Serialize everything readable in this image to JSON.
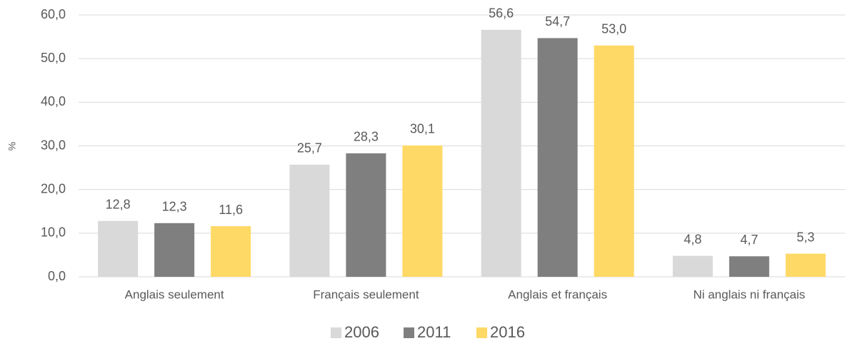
{
  "chart_data": {
    "type": "bar",
    "y_label": "%",
    "categories": [
      "Anglais seulement",
      "Français seulement",
      "Anglais et français",
      "Ni anglais ni français"
    ],
    "series": [
      {
        "name": "2006",
        "color": "#d9d9d9",
        "values": [
          12.8,
          25.7,
          56.6,
          4.8
        ],
        "value_labels": [
          "12,8",
          "25,7",
          "56,6",
          "4,8"
        ]
      },
      {
        "name": "2011",
        "color": "#7f7f7f",
        "values": [
          12.3,
          28.3,
          54.7,
          4.7
        ],
        "value_labels": [
          "12,3",
          "28,3",
          "54,7",
          "4,7"
        ]
      },
      {
        "name": "2016",
        "color": "#ffd966",
        "values": [
          11.6,
          30.1,
          53.0,
          5.3
        ],
        "value_labels": [
          "11,6",
          "30,1",
          "53,0",
          "5,3"
        ]
      }
    ],
    "ylim": [
      0,
      60
    ],
    "yticks": [
      {
        "value": 0,
        "label": "0,0"
      },
      {
        "value": 10,
        "label": "10,0"
      },
      {
        "value": 20,
        "label": "20,0"
      },
      {
        "value": 30,
        "label": "30,0"
      },
      {
        "value": 40,
        "label": "40,0"
      },
      {
        "value": 50,
        "label": "50,0"
      },
      {
        "value": 60,
        "label": "60,0"
      }
    ],
    "grid": true,
    "legend": "bottom"
  }
}
